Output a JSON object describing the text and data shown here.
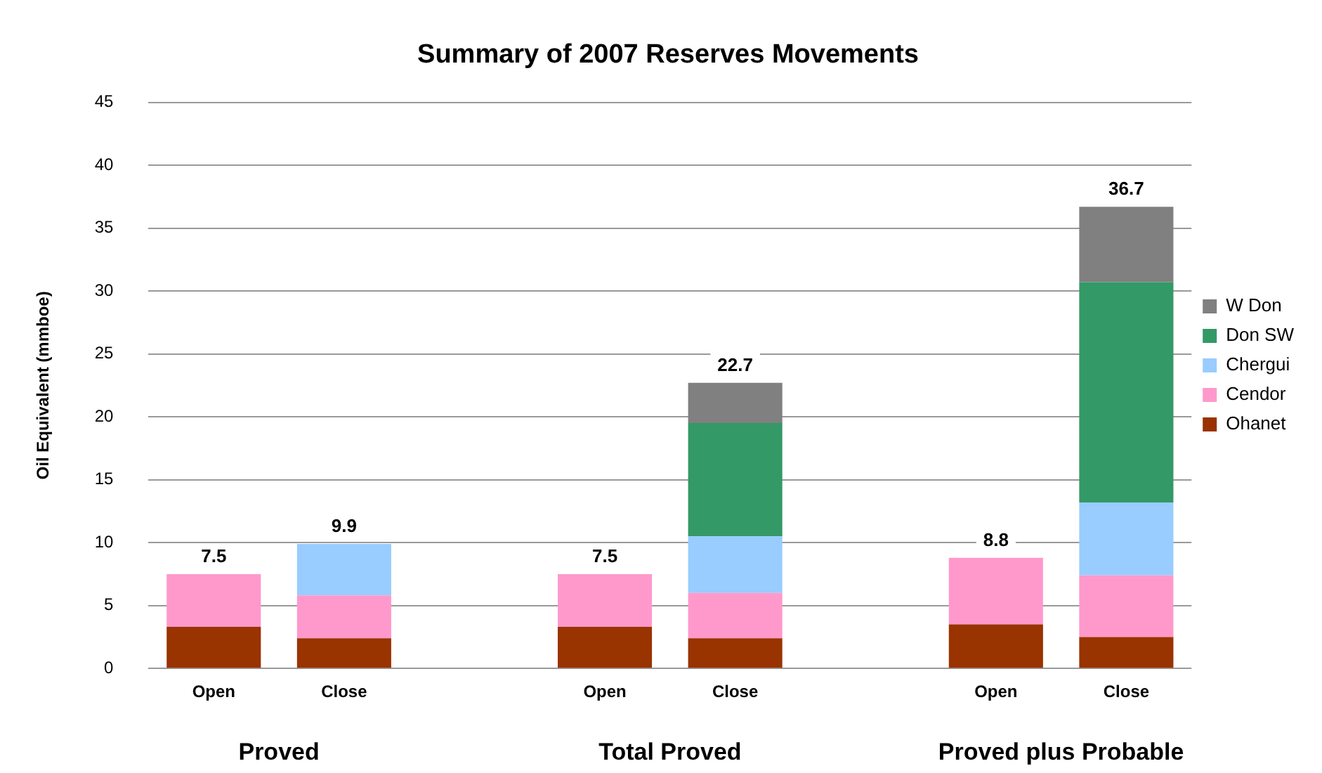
{
  "chart_data": {
    "type": "bar",
    "title": "Summary of 2007 Reserves Movements",
    "ylabel": "Oil Equivalent (mmboe)",
    "categories": [
      "Open",
      "Close",
      null,
      "Open",
      "Close",
      null,
      "Open",
      "Close"
    ],
    "series": [
      {
        "name": "Ohanet",
        "color": "#993300",
        "values": [
          3.3,
          2.4,
          null,
          3.3,
          2.4,
          null,
          3.5,
          2.5
        ]
      },
      {
        "name": "Cendor",
        "color": "#ff99cc",
        "values": [
          4.2,
          3.4,
          null,
          4.2,
          3.6,
          null,
          5.3,
          4.9
        ]
      },
      {
        "name": "Chergui",
        "color": "#99ccff",
        "values": [
          null,
          4.1,
          null,
          null,
          4.5,
          null,
          null,
          5.8
        ]
      },
      {
        "name": "Don SW",
        "color": "#339966",
        "values": [
          null,
          null,
          null,
          null,
          9.0,
          null,
          null,
          17.5
        ]
      },
      {
        "name": "W Don",
        "color": "#808080",
        "values": [
          null,
          null,
          null,
          null,
          3.2,
          null,
          null,
          6.0
        ]
      }
    ],
    "stacked": true,
    "totals": [
      "7.5",
      "9.9",
      null,
      "7.5",
      "22.7",
      null,
      "8.8",
      "36.7"
    ],
    "annotations": [
      "Proved",
      "Total Proved",
      "Proved plus Probable"
    ],
    "ylim": [
      0,
      45
    ],
    "yticks": [
      0,
      5,
      10,
      15,
      20,
      25,
      30,
      35,
      40,
      45
    ],
    "grid": "y",
    "legend": "right"
  }
}
